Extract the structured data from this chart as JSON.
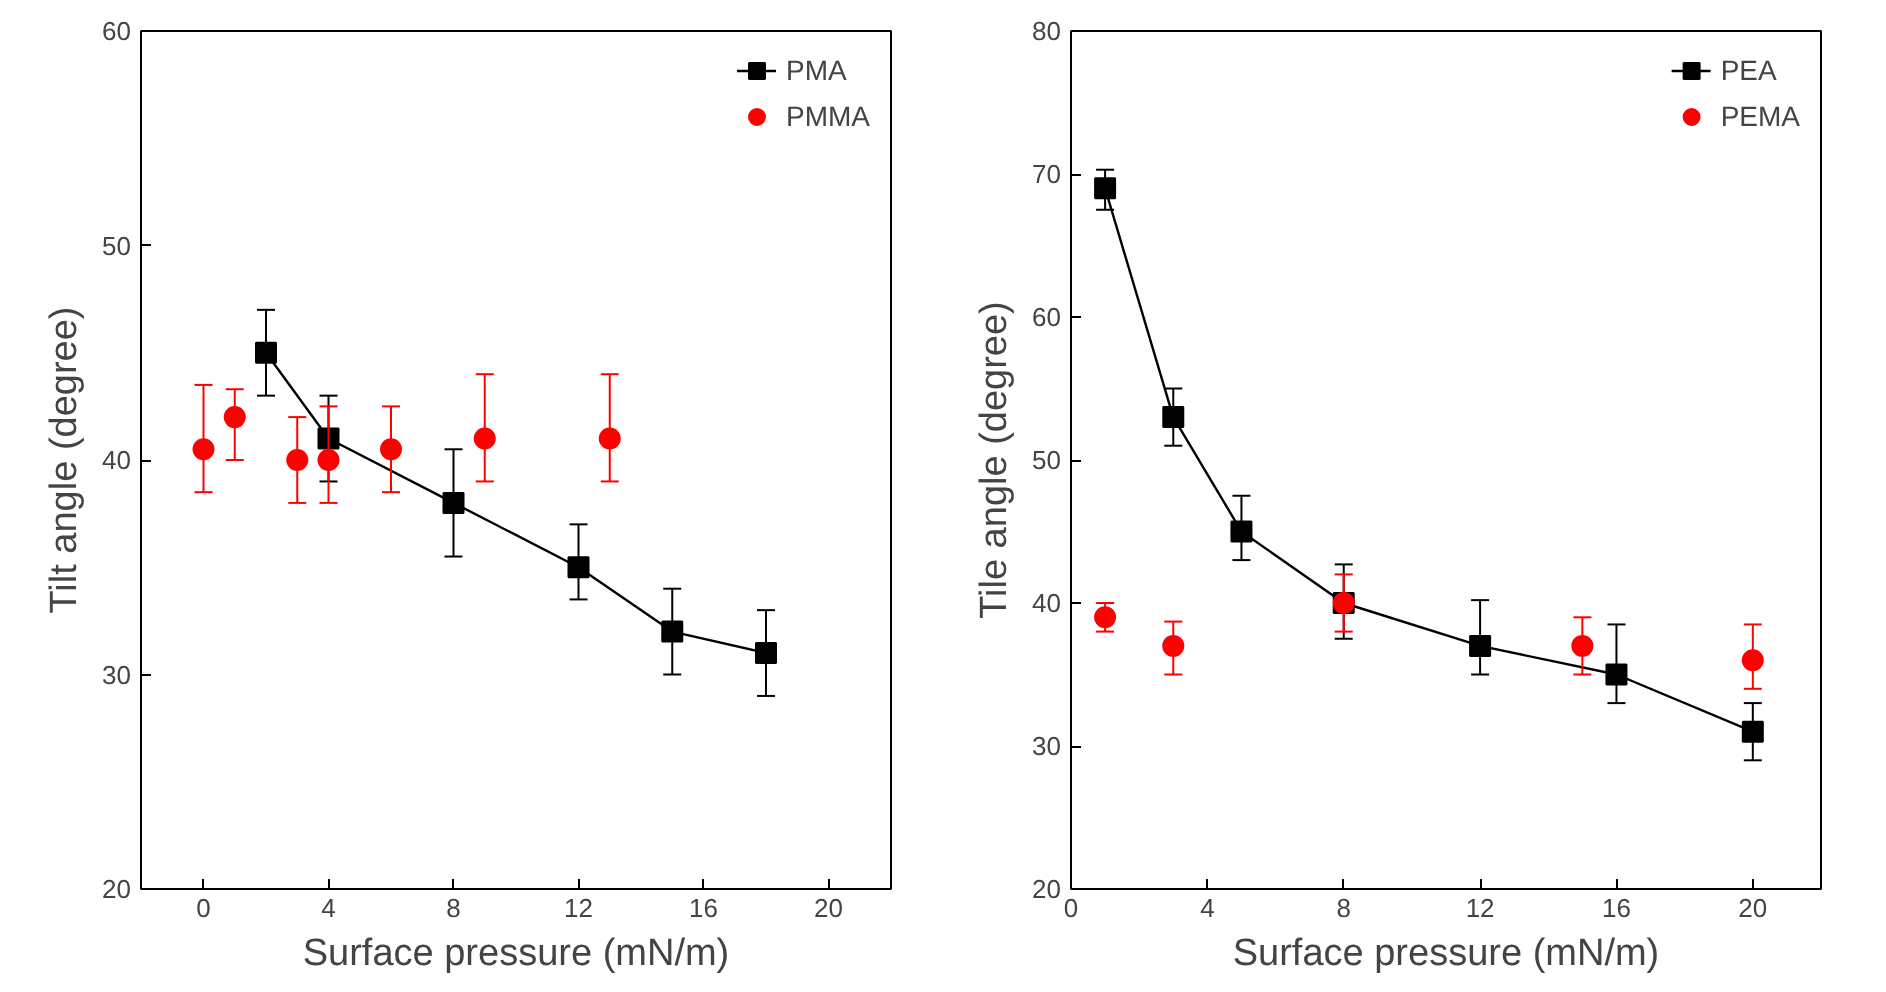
{
  "chart_data": [
    {
      "type": "scatter",
      "xlabel": "Surface pressure (mN/m)",
      "ylabel": "Tilt angle (degree)",
      "xlim": [
        -2,
        22
      ],
      "ylim": [
        20,
        60
      ],
      "xticks": [
        0,
        4,
        8,
        12,
        16,
        20
      ],
      "yticks": [
        20,
        30,
        40,
        50,
        60
      ],
      "legend": "top right",
      "grid": false,
      "series": [
        {
          "name": "PMA",
          "type": "line",
          "marker": "square",
          "color": "#000000",
          "x": [
            2,
            4,
            8,
            12,
            15,
            18
          ],
          "values": [
            45,
            41,
            38,
            35,
            32,
            31
          ],
          "errors": [
            [
              43,
              47
            ],
            [
              39,
              43
            ],
            [
              35.5,
              40.5
            ],
            [
              33.5,
              37
            ],
            [
              30,
              34
            ],
            [
              29,
              33
            ]
          ]
        },
        {
          "name": "PMMA",
          "marker": "circle",
          "color": "#ff0000",
          "x": [
            0,
            1,
            3,
            4,
            6,
            9,
            13
          ],
          "values": [
            40.5,
            42,
            40,
            40,
            40.5,
            41,
            41
          ],
          "errors": [
            [
              38.5,
              43.5
            ],
            [
              40,
              43.3
            ],
            [
              38,
              42
            ],
            [
              38,
              42.5
            ],
            [
              38.5,
              42.5
            ],
            [
              39,
              44
            ],
            [
              39,
              44
            ]
          ]
        }
      ]
    },
    {
      "type": "scatter",
      "xlabel": "Surface pressure (mN/m)",
      "ylabel": "Tile angle (degree)",
      "xlim": [
        0,
        22
      ],
      "ylim": [
        20,
        80
      ],
      "xticks": [
        0,
        4,
        8,
        12,
        16,
        20
      ],
      "yticks": [
        20,
        30,
        40,
        50,
        60,
        70,
        80
      ],
      "legend": "top right",
      "grid": false,
      "series": [
        {
          "name": "PEA",
          "type": "line",
          "marker": "square",
          "color": "#000000",
          "x": [
            1,
            3,
            5,
            8,
            12,
            16,
            20
          ],
          "values": [
            69,
            53,
            45,
            40,
            37,
            35,
            31
          ],
          "errors": [
            [
              67.5,
              70.3
            ],
            [
              51,
              55
            ],
            [
              43,
              47.5
            ],
            [
              37.5,
              42.7
            ],
            [
              35,
              40.2
            ],
            [
              33,
              38.5
            ],
            [
              29,
              33
            ]
          ]
        },
        {
          "name": "PEMA",
          "marker": "circle",
          "color": "#ff0000",
          "x": [
            1,
            3,
            8,
            15,
            20
          ],
          "values": [
            39,
            37,
            40,
            37,
            36
          ],
          "errors": [
            [
              38,
              40
            ],
            [
              35,
              38.7
            ],
            [
              38,
              42
            ],
            [
              35,
              39
            ],
            [
              34,
              38.5
            ]
          ]
        }
      ]
    }
  ]
}
